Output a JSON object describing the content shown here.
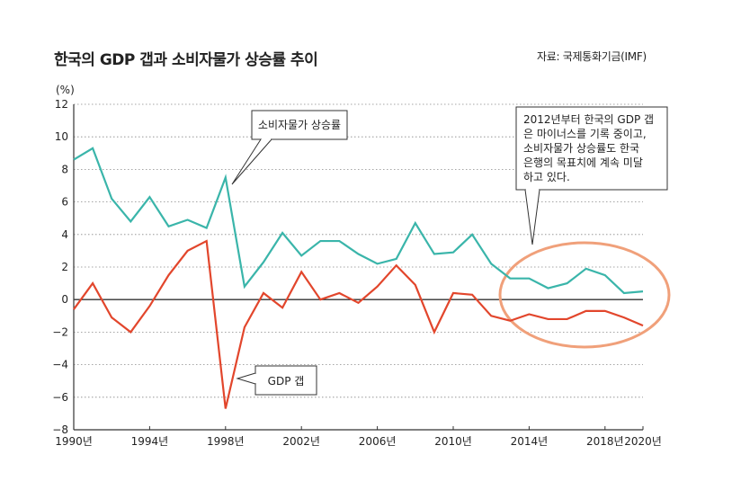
{
  "title": "한국의 GDP 갭과 소비자물가 상승률 추이",
  "source": "자료: 국제통화기금(IMF)",
  "y_unit": "(%)",
  "chart_data": {
    "type": "line",
    "x": [
      1990,
      1991,
      1992,
      1993,
      1994,
      1995,
      1996,
      1997,
      1998,
      1999,
      2000,
      2001,
      2002,
      2003,
      2004,
      2005,
      2006,
      2007,
      2008,
      2009,
      2010,
      2011,
      2012,
      2013,
      2014,
      2015,
      2016,
      2017,
      2018,
      2019,
      2020
    ],
    "x_tick_values": [
      1990,
      1994,
      1998,
      2002,
      2006,
      2010,
      2014,
      2018,
      2020
    ],
    "x_tick_labels": [
      "1990년",
      "1994년",
      "1998년",
      "2002년",
      "2006년",
      "2010년",
      "2014년",
      "2018년",
      "2020년"
    ],
    "y_ticks": [
      12,
      10,
      8,
      6,
      4,
      2,
      0,
      -2,
      -4,
      -6,
      -8
    ],
    "y_tick_labels": [
      "12",
      "10",
      "8",
      "6",
      "4",
      "2",
      "0",
      "−2",
      "−4",
      "−6",
      "−8"
    ],
    "xlim": [
      1990,
      2020
    ],
    "ylim": [
      -8,
      12
    ],
    "grid": "horizontal-dotted",
    "series": [
      {
        "name": "소비자물가 상승률",
        "color": "#3ab5aa",
        "values": [
          8.6,
          9.3,
          6.2,
          4.8,
          6.3,
          4.5,
          4.9,
          4.4,
          7.5,
          0.8,
          2.3,
          4.1,
          2.7,
          3.6,
          3.6,
          2.8,
          2.2,
          2.5,
          4.7,
          2.8,
          2.9,
          4.0,
          2.2,
          1.3,
          1.3,
          0.7,
          1.0,
          1.9,
          1.5,
          0.4,
          0.5
        ]
      },
      {
        "name": "GDP 갭",
        "color": "#e2462c",
        "values": [
          -0.6,
          1.0,
          -1.1,
          -2.0,
          -0.4,
          1.5,
          3.0,
          3.6,
          -6.7,
          -1.7,
          0.4,
          -0.5,
          1.7,
          0.0,
          0.4,
          -0.2,
          0.8,
          2.1,
          0.9,
          -2.0,
          0.4,
          0.3,
          -1.0,
          -1.3,
          -0.9,
          -1.2,
          -1.2,
          -0.7,
          -0.7,
          -1.1,
          -1.6
        ]
      }
    ],
    "annotations": {
      "cpi_label": "소비자물가 상승률",
      "gap_label": "GDP 갭",
      "note_lines": [
        "2012년부터 한국의 GDP 갭",
        "은 마이너스를 기록 중이고,",
        "소비자물가 상승률도 한국",
        "은행의 목표치에 계속 미달",
        "하고 있다."
      ],
      "highlight_color": "#f0a07a"
    }
  }
}
